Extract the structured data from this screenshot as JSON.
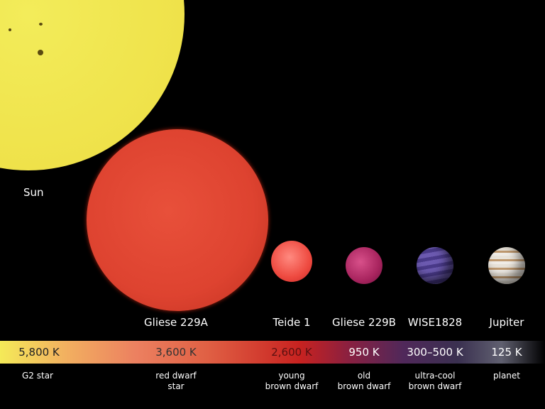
{
  "objects": [
    {
      "name": "Sun",
      "temperature": "5,800 K",
      "type": "G2 star"
    },
    {
      "name": "Gliese 229A",
      "temperature": "3,600 K",
      "type": "red dwarf\nstar"
    },
    {
      "name": "Teide 1",
      "temperature": "2,600 K",
      "type": "young\nbrown dwarf"
    },
    {
      "name": "Gliese 229B",
      "temperature": "950 K",
      "type": "old\nbrown dwarf"
    },
    {
      "name": "WISE1828",
      "temperature": "300–500 K",
      "type": "ultra-cool\nbrown dwarf"
    },
    {
      "name": "Jupiter",
      "temperature": "125 K",
      "type": "planet"
    }
  ],
  "colors": {
    "sun": "#efe24a",
    "gliese229a": "#de4330",
    "teide1": "#ee4a40",
    "gliese229b": "#a8245e",
    "wise1828": "#5a4a9a",
    "jupiter": "#d8c8b0"
  }
}
